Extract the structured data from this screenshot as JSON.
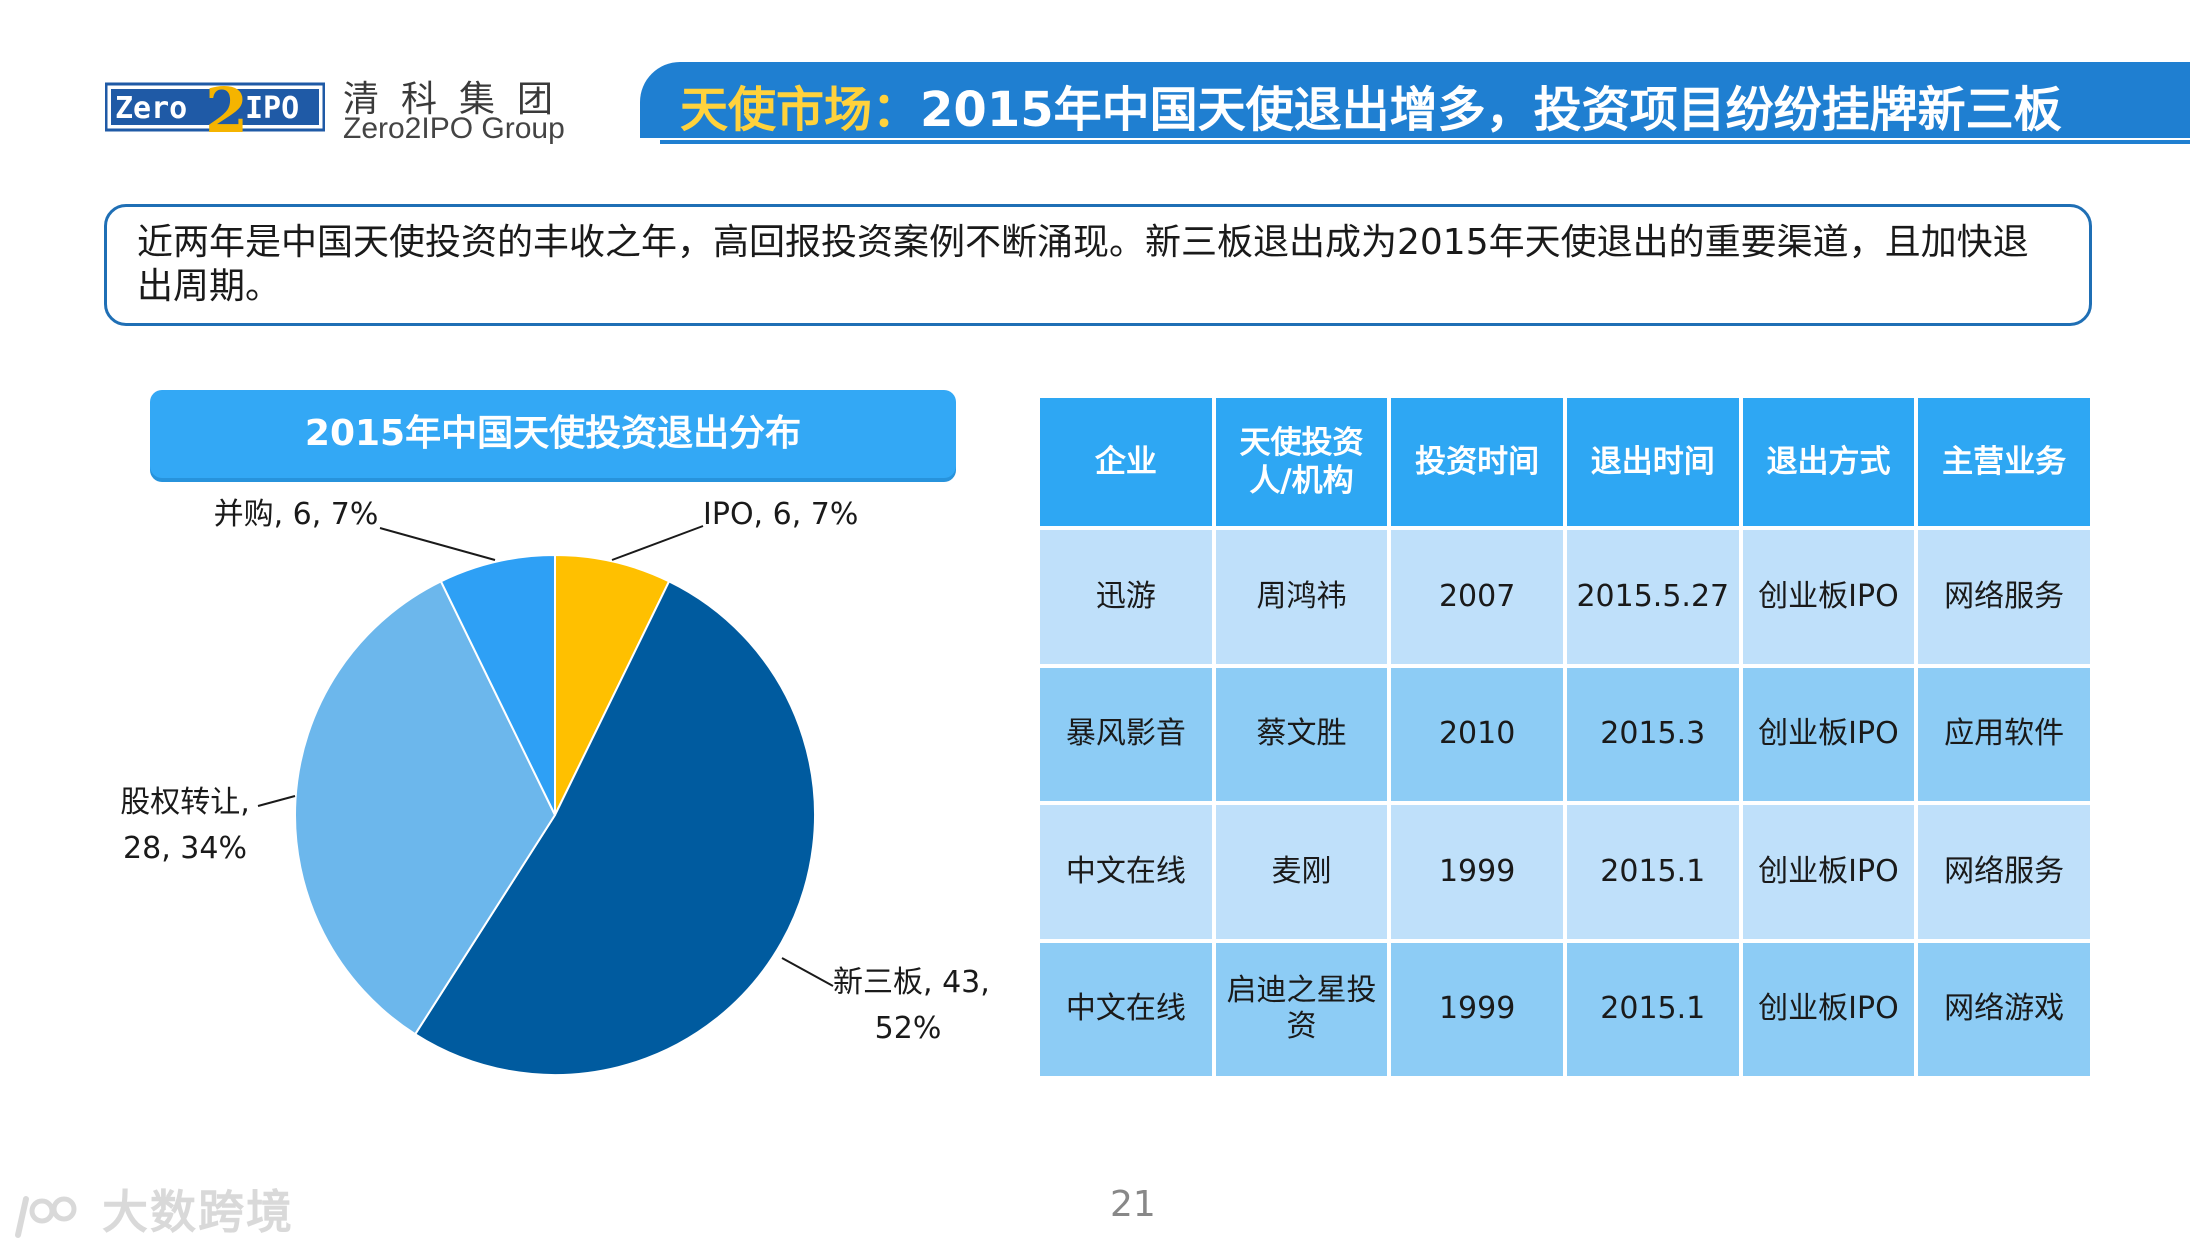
{
  "header": {
    "logo_badge_left": "Zero",
    "logo_badge_mid": "2",
    "logo_badge_right": "IPO",
    "logo_cn": "清科集团",
    "logo_en": "Zero2IPO Group",
    "title_accent": "天使市场：",
    "title_main": "2015年中国天使退出增多，投资项目纷纷挂牌新三板"
  },
  "summary": "近两年是中国天使投资的丰收之年，高回报投资案例不断涌现。新三板退出成为2015年天使退出的重要渠道，且加快退出周期。",
  "chart_data": {
    "type": "pie",
    "title": "2015年中国天使投资退出分布",
    "slices": [
      {
        "label": "IPO, 6, 7%",
        "name": "IPO",
        "value": 6,
        "percent": 7,
        "color": "#ffc000"
      },
      {
        "label": "新三板, 43, 52%",
        "name": "新三板",
        "value": 43,
        "percent": 52,
        "color": "#005b9f"
      },
      {
        "label": "股权转让, 28, 34%",
        "name": "股权转让",
        "value": 28,
        "percent": 34,
        "color": "#6cb7ec"
      },
      {
        "label": "并购, 6, 7%",
        "name": "并购",
        "value": 6,
        "percent": 7,
        "color": "#2ea0f5"
      }
    ]
  },
  "table": {
    "headers": [
      "企业",
      "天使投资人/机构",
      "投资时间",
      "退出时间",
      "退出方式",
      "主营业务"
    ],
    "rows": [
      [
        "迅游",
        "周鸿祎",
        "2007",
        "2015.5.27",
        "创业板IPO",
        "网络服务"
      ],
      [
        "暴风影音",
        "蔡文胜",
        "2010",
        "2015.3",
        "创业板IPO",
        "应用软件"
      ],
      [
        "中文在线",
        "麦刚",
        "1999",
        "2015.1",
        "创业板IPO",
        "网络服务"
      ],
      [
        "中文在线",
        "启迪之星投资",
        "1999",
        "2015.1",
        "创业板IPO",
        "网络游戏"
      ]
    ]
  },
  "footer": {
    "watermark": "大数跨境",
    "page_number": "21"
  }
}
